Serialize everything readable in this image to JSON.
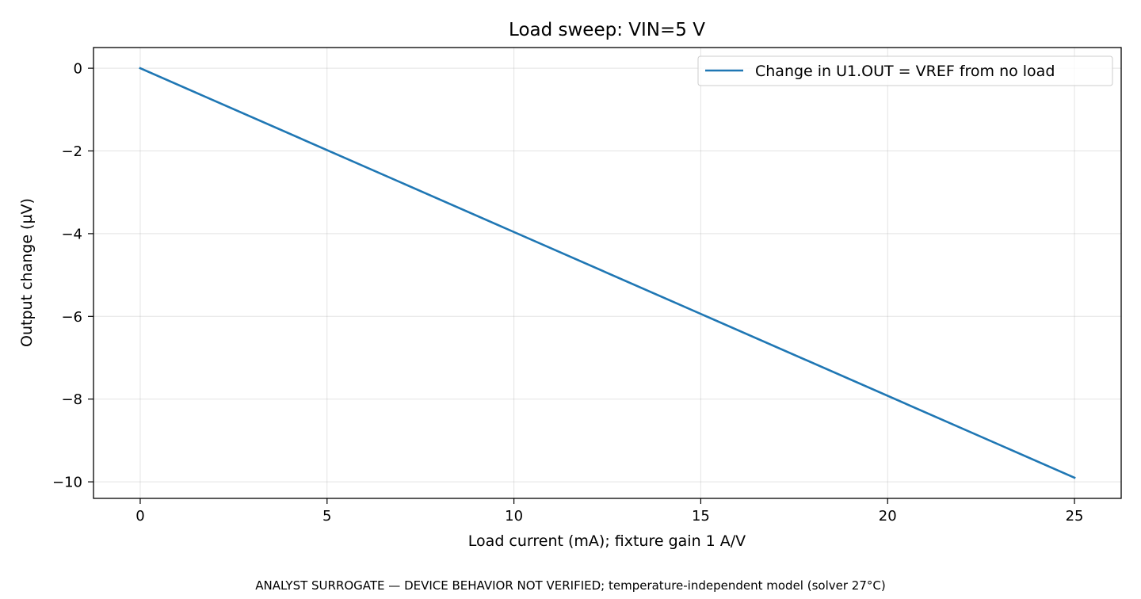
{
  "chart_data": {
    "type": "line",
    "title": "Load sweep: VIN=5 V",
    "xlabel": "Load current (mA); fixture gain 1 A/V",
    "ylabel": "Output change (µV)",
    "footer": "ANALYST SURROGATE — DEVICE BEHAVIOR NOT VERIFIED; temperature-independent model (solver 27°C)",
    "xlim": [
      -1.25,
      26.25
    ],
    "ylim": [
      -10.4,
      0.5
    ],
    "xticks": [
      0,
      5,
      10,
      15,
      20,
      25
    ],
    "xtick_labels": [
      "0",
      "5",
      "10",
      "15",
      "20",
      "25"
    ],
    "yticks": [
      0,
      -2,
      -4,
      -6,
      -8,
      -10
    ],
    "ytick_labels": [
      "0",
      "−2",
      "−4",
      "−6",
      "−8",
      "−10"
    ],
    "grid": true,
    "legend_position": "top-right",
    "series": [
      {
        "name": "Change in U1.OUT = VREF from no load",
        "color": "#1f77b4",
        "x": [
          0,
          25
        ],
        "y": [
          0,
          -9.9
        ]
      }
    ]
  }
}
